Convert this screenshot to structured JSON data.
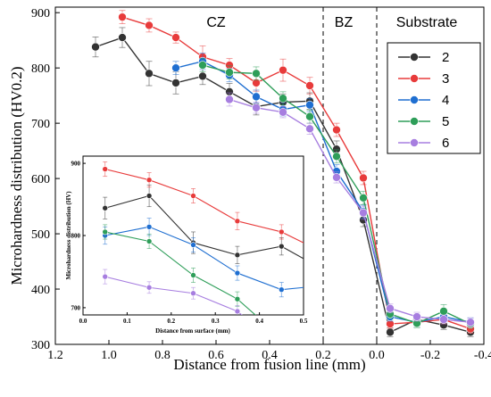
{
  "chart_data": [
    {
      "type": "line",
      "xlabel": "Distance from fusion line (mm)",
      "ylabel": "Microhardness distribution (HV0.2)",
      "xlim": [
        1.2,
        -0.4
      ],
      "ylim": [
        300,
        910
      ],
      "x_reversed": true,
      "xticks": [
        "1.2",
        "1.0",
        "0.8",
        "0.6",
        "0.4",
        "0.2",
        "0.0",
        "-0.2",
        "-0.4"
      ],
      "yticks": [
        "300",
        "400",
        "500",
        "600",
        "700",
        "800",
        "900"
      ],
      "grid": false,
      "legend_position": "right",
      "regions": [
        {
          "label": "CZ",
          "x_center": 0.7
        },
        {
          "label": "BZ",
          "x_center": 0.1
        },
        {
          "label": "Substrate",
          "x_center": -0.2
        }
      ],
      "boundaries": [
        0.2,
        0.0
      ],
      "series": [
        {
          "name": "2",
          "color": "#333333",
          "x": [
            1.05,
            0.95,
            0.85,
            0.75,
            0.65,
            0.55,
            0.45,
            0.35,
            0.25,
            0.15,
            0.05,
            -0.05,
            -0.15,
            -0.25,
            -0.35
          ],
          "y": [
            838,
            855,
            790,
            773,
            785,
            757,
            730,
            738,
            740,
            653,
            525,
            322,
            345,
            335,
            322
          ],
          "err": [
            18,
            18,
            22,
            20,
            15,
            15,
            15,
            15,
            15,
            15,
            12,
            8,
            10,
            8,
            8
          ]
        },
        {
          "name": "3",
          "color": "#e83b3b",
          "x": [
            0.95,
            0.85,
            0.75,
            0.65,
            0.55,
            0.45,
            0.35,
            0.25,
            0.15,
            0.05,
            -0.05,
            -0.15,
            -0.25,
            -0.35
          ],
          "y": [
            892,
            877,
            855,
            820,
            805,
            773,
            796,
            768,
            688,
            601,
            337,
            340,
            345,
            328
          ],
          "err": [
            12,
            12,
            10,
            20,
            12,
            15,
            20,
            15,
            12,
            12,
            8,
            8,
            8,
            8
          ]
        },
        {
          "name": "4",
          "color": "#1f6fd1",
          "x": [
            0.75,
            0.65,
            0.55,
            0.45,
            0.35,
            0.25,
            0.15,
            0.05,
            -0.05,
            -0.15,
            -0.25,
            -0.35
          ],
          "y": [
            800,
            812,
            787,
            748,
            725,
            733,
            613,
            540,
            350,
            340,
            350,
            340
          ],
          "err": [
            12,
            15,
            12,
            12,
            12,
            12,
            12,
            12,
            8,
            8,
            8,
            8
          ]
        },
        {
          "name": "5",
          "color": "#2e9e59",
          "x": [
            0.65,
            0.55,
            0.45,
            0.35,
            0.25,
            0.15,
            0.05,
            -0.05,
            -0.15,
            -0.25,
            -0.35
          ],
          "y": [
            805,
            792,
            790,
            745,
            712,
            640,
            565,
            355,
            338,
            360,
            337
          ],
          "err": [
            12,
            12,
            12,
            12,
            12,
            12,
            12,
            8,
            8,
            12,
            8
          ]
        },
        {
          "name": "6",
          "color": "#a77ee0",
          "x": [
            0.55,
            0.45,
            0.35,
            0.25,
            0.15,
            0.05,
            -0.05,
            -0.15,
            -0.25,
            -0.35
          ],
          "y": [
            743,
            728,
            720,
            690,
            602,
            538,
            365,
            350,
            345,
            340
          ],
          "err": [
            12,
            10,
            10,
            10,
            10,
            12,
            8,
            8,
            8,
            8
          ]
        }
      ]
    },
    {
      "type": "line",
      "xlabel": "Distance from surface (mm)",
      "ylabel": "Microhardness distribution (HV)",
      "xlim": [
        0.0,
        0.5
      ],
      "ylim": [
        690,
        910
      ],
      "xticks": [
        "0.0",
        "0.1",
        "0.2",
        "0.3",
        "0.4",
        "0.5"
      ],
      "yticks": [
        "700",
        "800",
        "900"
      ],
      "grid": false,
      "series": [
        {
          "name": "2",
          "color": "#333333",
          "x": [
            0.05,
            0.15,
            0.25,
            0.35,
            0.45,
            0.5
          ],
          "y": [
            838,
            855,
            790,
            773,
            785,
            768
          ],
          "err": [
            15,
            15,
            15,
            12,
            12,
            0
          ]
        },
        {
          "name": "3",
          "color": "#e83b3b",
          "x": [
            0.05,
            0.15,
            0.25,
            0.35,
            0.45,
            0.5
          ],
          "y": [
            892,
            877,
            855,
            820,
            805,
            790
          ],
          "err": [
            10,
            10,
            10,
            12,
            10,
            0
          ]
        },
        {
          "name": "4",
          "color": "#1f6fd1",
          "x": [
            0.05,
            0.15,
            0.25,
            0.35,
            0.45,
            0.5
          ],
          "y": [
            800,
            812,
            787,
            748,
            725,
            728
          ],
          "err": [
            12,
            12,
            10,
            10,
            10,
            0
          ]
        },
        {
          "name": "5",
          "color": "#2e9e59",
          "x": [
            0.05,
            0.15,
            0.25,
            0.35,
            0.4
          ],
          "y": [
            805,
            792,
            745,
            712,
            685
          ],
          "err": [
            10,
            10,
            10,
            10,
            0
          ]
        },
        {
          "name": "6",
          "color": "#a77ee0",
          "x": [
            0.05,
            0.15,
            0.25,
            0.35,
            0.38
          ],
          "y": [
            743,
            728,
            720,
            695,
            680
          ],
          "err": [
            10,
            8,
            8,
            8,
            0
          ]
        }
      ]
    }
  ]
}
